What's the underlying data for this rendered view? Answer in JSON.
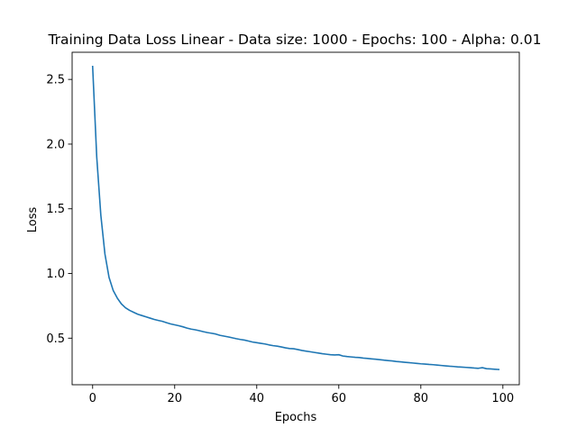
{
  "chart_data": {
    "type": "line",
    "title": "Training Data Loss Linear - Data size: 1000 - Epochs: 100 - Alpha: 0.01",
    "xlabel": "Epochs",
    "ylabel": "Loss",
    "xlim": [
      -5,
      104
    ],
    "ylim": [
      0.14,
      2.71
    ],
    "xticks": [
      0,
      20,
      40,
      60,
      80,
      100
    ],
    "yticks": [
      0.5,
      1.0,
      1.5,
      2.0,
      2.5
    ],
    "xtick_labels": [
      "0",
      "20",
      "40",
      "60",
      "80",
      "100"
    ],
    "ytick_labels": [
      "0.5",
      "1.0",
      "1.5",
      "2.0",
      "2.5"
    ],
    "grid": false,
    "series": [
      {
        "color": "#1f77b4",
        "x": [
          0,
          1,
          2,
          3,
          4,
          5,
          6,
          7,
          8,
          9,
          10,
          11,
          12,
          13,
          14,
          15,
          16,
          17,
          18,
          19,
          20,
          21,
          22,
          23,
          24,
          25,
          26,
          27,
          28,
          29,
          30,
          31,
          32,
          33,
          34,
          35,
          36,
          37,
          38,
          39,
          40,
          41,
          42,
          43,
          44,
          45,
          46,
          47,
          48,
          49,
          50,
          51,
          52,
          53,
          54,
          55,
          56,
          57,
          58,
          59,
          60,
          61,
          62,
          63,
          64,
          65,
          66,
          67,
          68,
          69,
          70,
          71,
          72,
          73,
          74,
          75,
          76,
          77,
          78,
          79,
          80,
          81,
          82,
          83,
          84,
          85,
          86,
          87,
          88,
          89,
          90,
          91,
          92,
          93,
          94,
          95,
          96,
          97,
          98,
          99
        ],
        "y": [
          2.6,
          1.9,
          1.45,
          1.15,
          0.97,
          0.87,
          0.81,
          0.765,
          0.735,
          0.715,
          0.7,
          0.685,
          0.675,
          0.665,
          0.655,
          0.645,
          0.637,
          0.63,
          0.62,
          0.61,
          0.603,
          0.596,
          0.588,
          0.578,
          0.57,
          0.565,
          0.558,
          0.55,
          0.543,
          0.538,
          0.532,
          0.522,
          0.516,
          0.51,
          0.503,
          0.496,
          0.49,
          0.485,
          0.478,
          0.47,
          0.465,
          0.46,
          0.455,
          0.448,
          0.442,
          0.438,
          0.432,
          0.425,
          0.42,
          0.418,
          0.412,
          0.405,
          0.4,
          0.395,
          0.39,
          0.385,
          0.38,
          0.376,
          0.372,
          0.37,
          0.372,
          0.362,
          0.358,
          0.355,
          0.352,
          0.35,
          0.346,
          0.343,
          0.34,
          0.337,
          0.334,
          0.33,
          0.327,
          0.324,
          0.32,
          0.317,
          0.314,
          0.311,
          0.308,
          0.305,
          0.302,
          0.3,
          0.297,
          0.295,
          0.292,
          0.289,
          0.286,
          0.283,
          0.281,
          0.278,
          0.276,
          0.274,
          0.272,
          0.269,
          0.267,
          0.272,
          0.264,
          0.262,
          0.26,
          0.258
        ]
      }
    ]
  }
}
